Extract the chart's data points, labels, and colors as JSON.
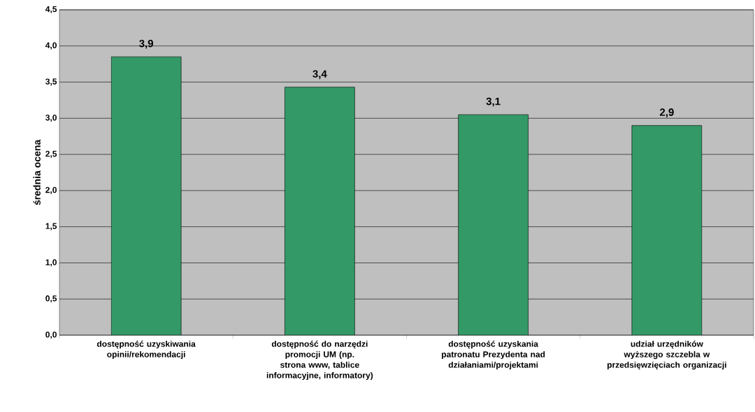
{
  "chart_data": {
    "type": "bar",
    "ylabel": "średnia ocena",
    "categories": [
      "dostępność uzyskiwania opinii/rekomendacji",
      "dostępność do narzędzi promocji UM (np. strona www, tablice informacyjne, informatory)",
      "dostępność uzyskania patronatu Prezydenta nad działaniami/projektami",
      "udział urzędników wyższego szczebla w przedsięwzięciach organizacji"
    ],
    "values": [
      3.85,
      3.43,
      3.05,
      2.9
    ],
    "value_labels": [
      "3,9",
      "3,4",
      "3,1",
      "2,9"
    ],
    "color": "#339966",
    "ylim": [
      0,
      4.5
    ],
    "yticks": [
      {
        "value": 0,
        "label": "0,0"
      },
      {
        "value": 0.5,
        "label": "0,5"
      },
      {
        "value": 1,
        "label": "1,0"
      },
      {
        "value": 1.5,
        "label": "1,5"
      },
      {
        "value": 2,
        "label": "2,0"
      },
      {
        "value": 2.5,
        "label": "2,5"
      },
      {
        "value": 3,
        "label": "3,0"
      },
      {
        "value": 3.5,
        "label": "3,5"
      },
      {
        "value": 4,
        "label": "4,0"
      },
      {
        "value": 4.5,
        "label": "4,5"
      }
    ],
    "grid": "y"
  }
}
